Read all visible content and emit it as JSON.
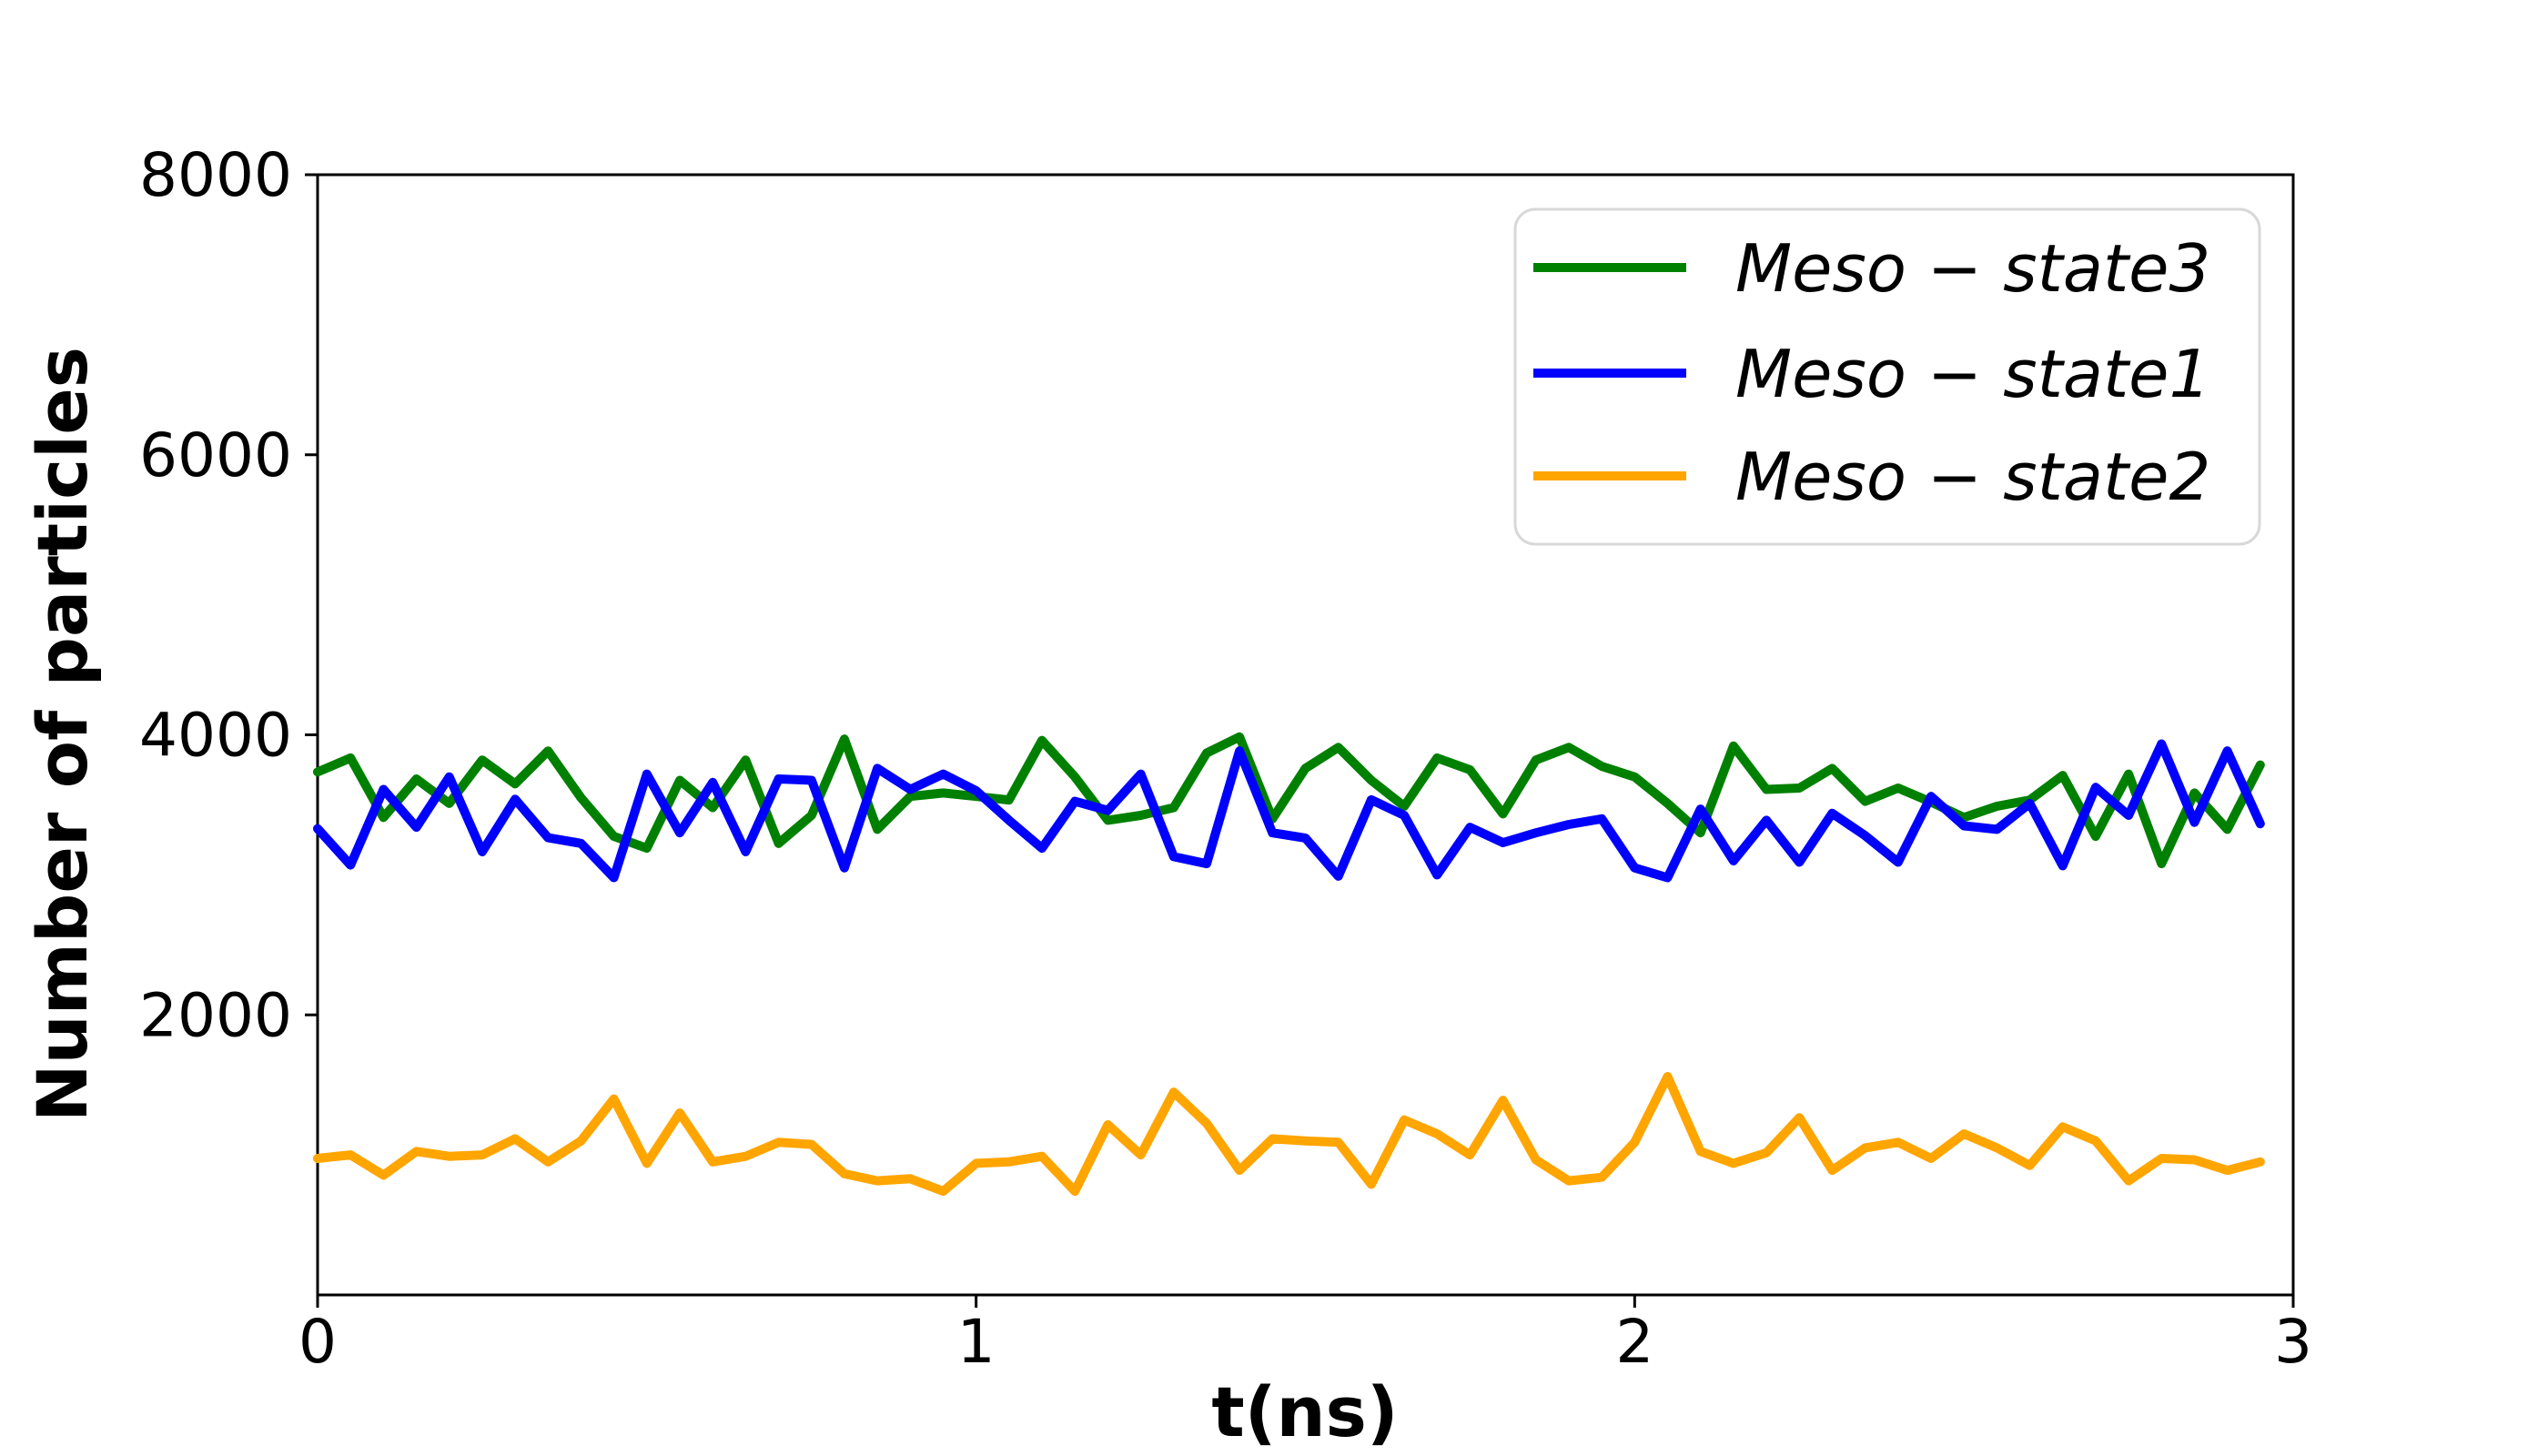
{
  "figure": {
    "background": "#ffffff",
    "axis_color": "#000000"
  },
  "chart_data": {
    "type": "line",
    "title": "",
    "xlabel": "t(ns)",
    "ylabel": "Number of particles",
    "xlim": [
      0,
      3
    ],
    "ylim": [
      0,
      8000
    ],
    "x_ticks": [
      0,
      1,
      2,
      3
    ],
    "x_tick_labels": [
      "0",
      "1",
      "2",
      "3"
    ],
    "y_ticks": [
      2000,
      4000,
      6000,
      8000
    ],
    "y_tick_labels": [
      "2000",
      "4000",
      "6000",
      "8000"
    ],
    "grid": "off",
    "legend_position": "upper right",
    "x_start": 0,
    "x_step": 0.05,
    "series": [
      {
        "name": "Meso − state3",
        "color": "#008000",
        "values": [
          3735,
          3835,
          3410,
          3685,
          3510,
          3820,
          3650,
          3885,
          3550,
          3275,
          3190,
          3675,
          3480,
          3820,
          3225,
          3425,
          3970,
          3325,
          3560,
          3585,
          3560,
          3535,
          3960,
          3700,
          3390,
          3425,
          3480,
          3870,
          3985,
          3400,
          3760,
          3910,
          3675,
          3490,
          3835,
          3750,
          3435,
          3820,
          3910,
          3775,
          3700,
          3510,
          3300,
          3920,
          3610,
          3620,
          3760,
          3525,
          3620,
          3520,
          3410,
          3490,
          3535,
          3710,
          3275,
          3720,
          3080,
          3585,
          3325,
          3785
        ]
      },
      {
        "name": "Meso − state1",
        "color": "#0000ff",
        "values": [
          3330,
          3070,
          3610,
          3340,
          3700,
          3165,
          3540,
          3265,
          3225,
          2980,
          3720,
          3300,
          3660,
          3165,
          3685,
          3675,
          3050,
          3760,
          3610,
          3720,
          3600,
          3390,
          3190,
          3525,
          3460,
          3720,
          3130,
          3080,
          3885,
          3300,
          3263,
          2990,
          3536,
          3425,
          3000,
          3340,
          3230,
          3300,
          3360,
          3400,
          3050,
          2980,
          3470,
          3100,
          3390,
          3090,
          3440,
          3280,
          3090,
          3560,
          3350,
          3325,
          3510,
          3065,
          3625,
          3425,
          3935,
          3375,
          3885,
          3365
        ]
      },
      {
        "name": "Meso − state2",
        "color": "#ffa500",
        "values": [
          975,
          1000,
          855,
          1025,
          990,
          1000,
          1115,
          950,
          1100,
          1400,
          940,
          1300,
          950,
          990,
          1090,
          1075,
          865,
          815,
          830,
          740,
          940,
          950,
          990,
          740,
          1215,
          1000,
          1448,
          1225,
          890,
          1115,
          1100,
          1090,
          790,
          1250,
          1150,
          1000,
          1390,
          965,
          815,
          840,
          1090,
          1560,
          1025,
          940,
          1015,
          1265,
          890,
          1050,
          1090,
          975,
          1150,
          1050,
          925,
          1200,
          1100,
          815,
          975,
          965,
          890,
          950
        ]
      }
    ]
  }
}
